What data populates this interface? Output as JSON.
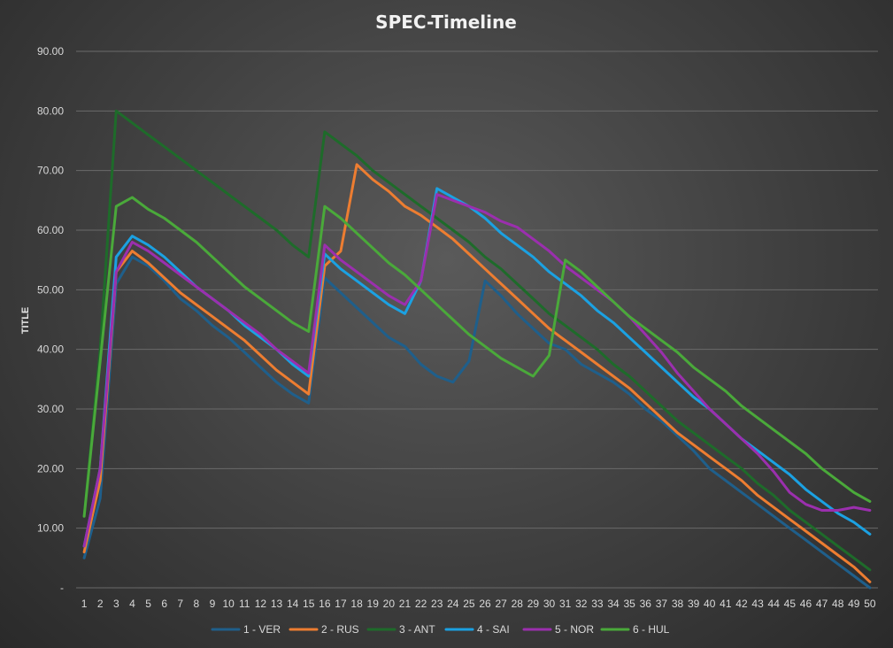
{
  "chart_data": {
    "type": "line",
    "title": "SPEC-Timeline",
    "xlabel": "",
    "ylabel": "TITLE",
    "ylim": [
      0,
      90
    ],
    "y_ticks": [
      "-",
      "10.00",
      "20.00",
      "30.00",
      "40.00",
      "50.00",
      "60.00",
      "70.00",
      "80.00",
      "90.00"
    ],
    "y_tick_values": [
      0,
      10,
      20,
      30,
      40,
      50,
      60,
      70,
      80,
      90
    ],
    "x": [
      1,
      2,
      3,
      4,
      5,
      6,
      7,
      8,
      9,
      10,
      11,
      12,
      13,
      14,
      15,
      16,
      17,
      18,
      19,
      20,
      21,
      22,
      23,
      24,
      25,
      26,
      27,
      28,
      29,
      30,
      31,
      32,
      33,
      34,
      35,
      36,
      37,
      38,
      39,
      40,
      41,
      42,
      43,
      44,
      45,
      46,
      47,
      48,
      49,
      50
    ],
    "grid": true,
    "legend_position": "bottom",
    "series": [
      {
        "name": "1 - VER",
        "color": "#1f5f8b",
        "values": [
          5,
          15,
          51,
          55.5,
          54,
          51.5,
          48.5,
          46.5,
          44,
          42,
          39.5,
          37,
          34.5,
          32.5,
          31,
          52,
          49.5,
          47,
          44.5,
          42,
          40.5,
          37.5,
          35.5,
          34.5,
          38,
          51.5,
          49,
          46,
          43.5,
          41,
          40,
          37.5,
          36,
          34.5,
          32.5,
          30,
          28,
          25.5,
          23,
          20,
          18,
          16,
          14,
          12,
          10,
          8,
          6,
          4,
          2,
          0
        ]
      },
      {
        "name": "2 - RUS",
        "color": "#ed7d31",
        "values": [
          6,
          18,
          53,
          56.5,
          54.5,
          52,
          49.5,
          47.5,
          45.5,
          43.5,
          41.5,
          39,
          36.5,
          34.5,
          32.5,
          54,
          56.5,
          71,
          68.5,
          66.5,
          64,
          62.5,
          60.5,
          58.5,
          56,
          53.5,
          51,
          48.5,
          46,
          43.5,
          41.5,
          39.5,
          37.5,
          35.5,
          33.5,
          31,
          28.5,
          26,
          24,
          22,
          20,
          18,
          15.5,
          13.5,
          11.5,
          9.5,
          7.5,
          5.5,
          3.5,
          1
        ]
      },
      {
        "name": "3 - ANT",
        "color": "#1e6b2a",
        "values": [
          12,
          40,
          80,
          78,
          76,
          74,
          72,
          70,
          68,
          66,
          64,
          62,
          60,
          57.5,
          55.5,
          76.5,
          74.5,
          72.5,
          70,
          68,
          66,
          64,
          62,
          60,
          58,
          55.5,
          53.5,
          51,
          48.5,
          46,
          44,
          42,
          40,
          37.5,
          35.5,
          33,
          30.5,
          28,
          26,
          24,
          22,
          20,
          17.5,
          15.5,
          13,
          11,
          9,
          7,
          5,
          3
        ]
      },
      {
        "name": "4 - SAI",
        "color": "#1ba1e2",
        "values": [
          7,
          20,
          55.5,
          59,
          57.5,
          55.5,
          53,
          50.5,
          48.5,
          46.5,
          44,
          42,
          40,
          37.5,
          35.5,
          56,
          53.5,
          51.5,
          49.5,
          47.5,
          46,
          51.5,
          67,
          65.5,
          64,
          62,
          59.5,
          57.5,
          55.5,
          53,
          51,
          49,
          46.5,
          44.5,
          42,
          39.5,
          37,
          34.5,
          32,
          30,
          27.5,
          25,
          23,
          21,
          19,
          16.5,
          14.5,
          12.5,
          11,
          9
        ]
      },
      {
        "name": "5 - NOR",
        "color": "#9b2fae",
        "values": [
          7,
          20,
          53,
          58,
          56.5,
          54.5,
          52.5,
          50.5,
          48.5,
          46.5,
          44.5,
          42.5,
          40,
          38,
          36,
          57.5,
          55,
          53,
          51,
          49,
          47.5,
          51.5,
          66,
          65,
          64,
          63,
          61.5,
          60.5,
          58.5,
          56.5,
          54,
          52,
          50,
          48,
          45.5,
          42.5,
          39.5,
          36,
          33,
          30,
          27.5,
          25,
          22.5,
          19.5,
          16,
          14,
          13,
          13,
          13.5,
          13
        ]
      },
      {
        "name": "6 - HUL",
        "color": "#4aa93a",
        "values": [
          12,
          38,
          64,
          65.5,
          63.5,
          62,
          60,
          58,
          55.5,
          53,
          50.5,
          48.5,
          46.5,
          44.5,
          43,
          64,
          62,
          59.5,
          57,
          54.5,
          52.5,
          50,
          47.5,
          45,
          42.5,
          40.5,
          38.5,
          37,
          35.5,
          39,
          55,
          53,
          50.5,
          48,
          45.5,
          43.5,
          41.5,
          39.5,
          37,
          35,
          33,
          30.5,
          28.5,
          26.5,
          24.5,
          22.5,
          20,
          18,
          16,
          14.5
        ]
      }
    ]
  }
}
